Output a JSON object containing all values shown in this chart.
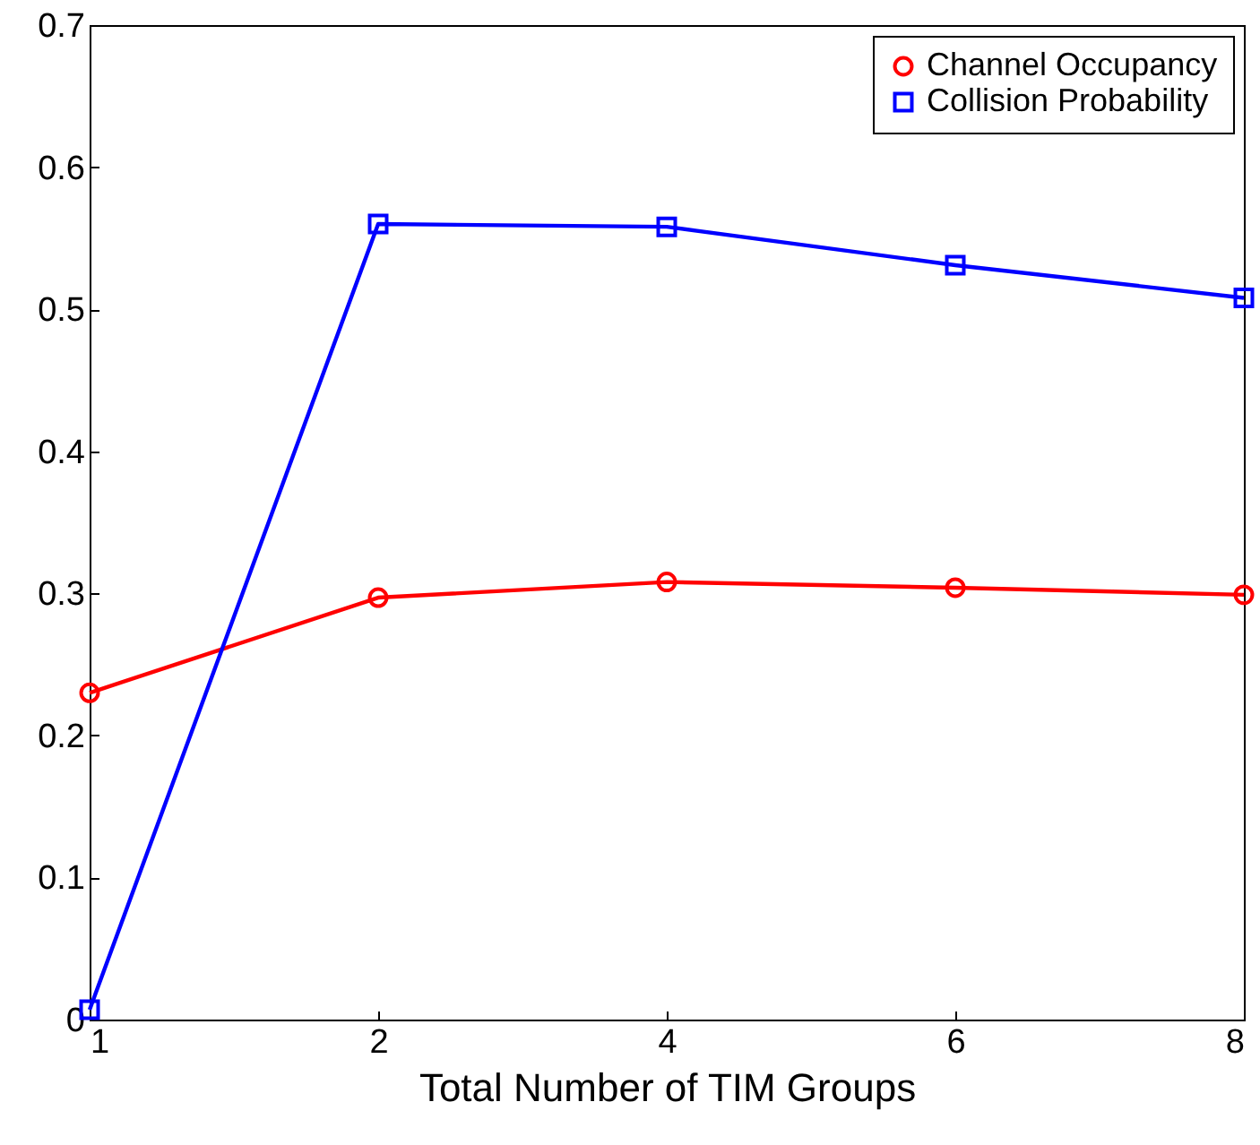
{
  "chart_data": {
    "type": "line",
    "xlabel": "Total Number of TIM Groups",
    "categories": [
      "1",
      "2",
      "4",
      "6",
      "8"
    ],
    "series": [
      {
        "name": "Channel Occupancy",
        "color": "#ff0000",
        "marker": "circle",
        "values": [
          0.23,
          0.297,
          0.308,
          0.304,
          0.299
        ]
      },
      {
        "name": "Collision Probability",
        "color": "#0000ff",
        "marker": "square",
        "values": [
          0.007,
          0.56,
          0.558,
          0.531,
          0.508
        ]
      }
    ],
    "ylim": [
      0,
      0.7
    ],
    "yticks": [
      0,
      0.1,
      0.2,
      0.3,
      0.4,
      0.5,
      0.6,
      0.7
    ],
    "grid": false,
    "legend": "top right",
    "line_style": "solid"
  }
}
